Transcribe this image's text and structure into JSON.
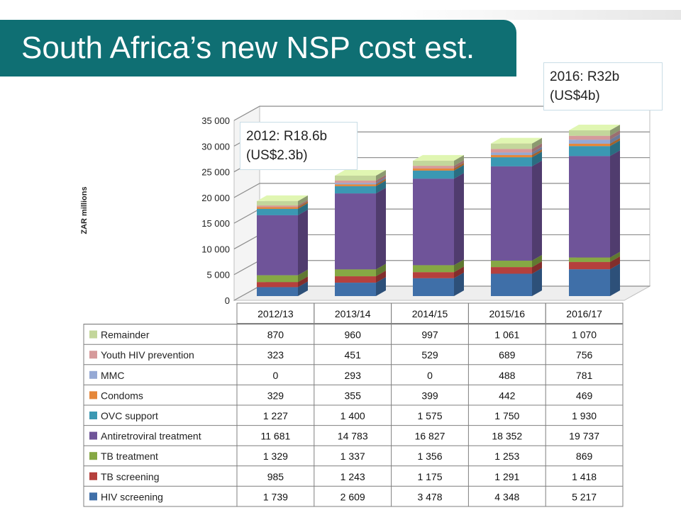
{
  "slide": {
    "title": "South Africa’s new NSP cost est.",
    "callout_2016_line1": "2016: R32b",
    "callout_2016_line2": "(US$4b)",
    "callout_2012_line1": "2012: R18.6b",
    "callout_2012_line2": "(US$2.3b)"
  },
  "chart_data": {
    "type": "bar",
    "stacked": true,
    "three_d": true,
    "ylabel": "ZAR millions",
    "ylim": [
      0,
      35000
    ],
    "yticks": [
      0,
      5000,
      10000,
      15000,
      20000,
      25000,
      30000,
      35000
    ],
    "ytick_labels": [
      "0",
      "5 000",
      "10 000",
      "15 000",
      "20 000",
      "25 000",
      "30 000",
      "35 000"
    ],
    "grid": true,
    "legend_position": "data table",
    "categories": [
      "2012/13",
      "2013/14",
      "2014/15",
      "2015/16",
      "2016/17"
    ],
    "series": [
      {
        "name": "HIV screening",
        "color": "#3f6fa8",
        "values": [
          1739,
          2609,
          3478,
          4348,
          5217
        ],
        "labels": [
          "1 739",
          "2 609",
          "3 478",
          "4 348",
          "5 217"
        ]
      },
      {
        "name": "TB screening",
        "color": "#b5403d",
        "values": [
          985,
          1243,
          1175,
          1291,
          1418
        ],
        "labels": [
          "985",
          "1 243",
          "1 175",
          "1 291",
          "1 418"
        ]
      },
      {
        "name": "TB treatment",
        "color": "#86a844",
        "values": [
          1329,
          1337,
          1356,
          1253,
          869
        ],
        "labels": [
          "1 329",
          "1 337",
          "1 356",
          "1 253",
          "869"
        ]
      },
      {
        "name": "Antiretroviral treatment",
        "color": "#6f5499",
        "values": [
          11681,
          14783,
          16827,
          18352,
          19737
        ],
        "labels": [
          "11 681",
          "14 783",
          "16 827",
          "18 352",
          "19 737"
        ]
      },
      {
        "name": "OVC support",
        "color": "#3b98b3",
        "values": [
          1227,
          1400,
          1575,
          1750,
          1930
        ],
        "labels": [
          "1 227",
          "1 400",
          "1 575",
          "1 750",
          "1 930"
        ]
      },
      {
        "name": "Condoms",
        "color": "#e5873a",
        "values": [
          329,
          355,
          399,
          442,
          469
        ],
        "labels": [
          "329",
          "355",
          "399",
          "442",
          "469"
        ]
      },
      {
        "name": "MMC",
        "color": "#95a9d5",
        "values": [
          0,
          293,
          0,
          488,
          781
        ],
        "labels": [
          "0",
          "293",
          "0",
          "488",
          "781"
        ]
      },
      {
        "name": "Youth HIV prevention",
        "color": "#d69a9b",
        "values": [
          323,
          451,
          529,
          689,
          756
        ],
        "labels": [
          "323",
          "451",
          "529",
          "689",
          "756"
        ]
      },
      {
        "name": "Remainder",
        "color": "#c3d69b",
        "values": [
          870,
          960,
          997,
          1061,
          1070
        ],
        "labels": [
          "870",
          "960",
          "997",
          "1 061",
          "1 070"
        ]
      }
    ]
  }
}
